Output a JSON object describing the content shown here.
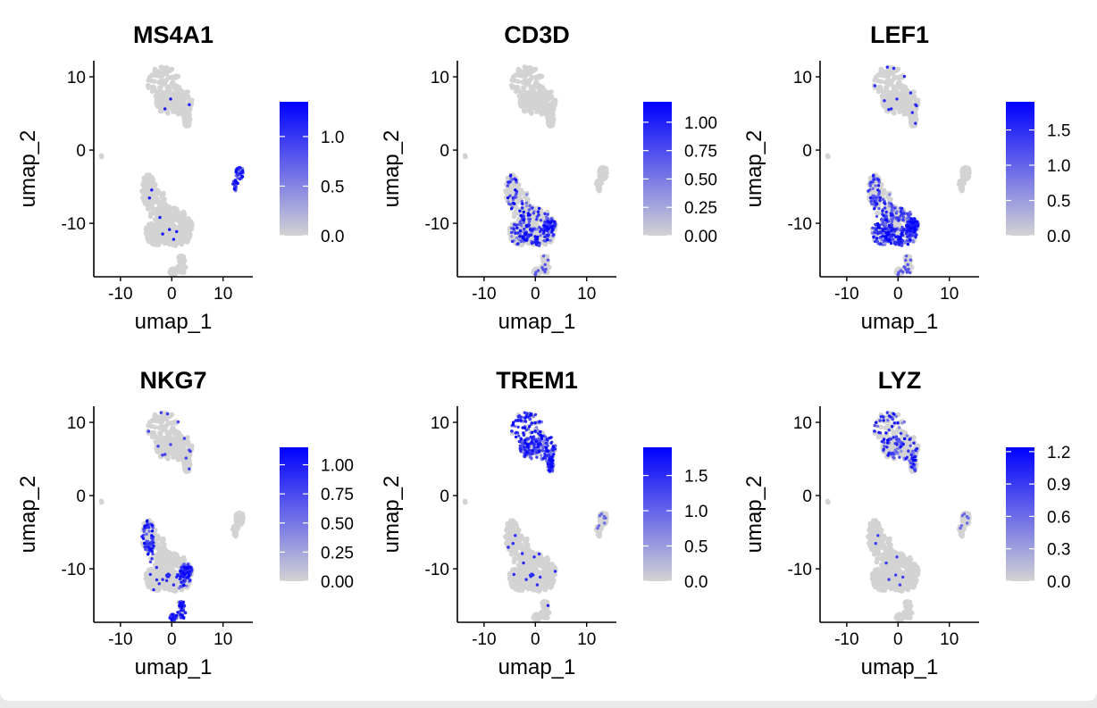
{
  "figure": {
    "background": "#ffffff",
    "low_color": "#d3d3d3",
    "high_color": "#0000ff"
  },
  "chart_data": [
    {
      "type": "scatter",
      "title": "MS4A1",
      "xlabel": "umap_1",
      "ylabel": "umap_2",
      "xticks": [
        -10,
        0,
        10
      ],
      "yticks": [
        10,
        0,
        -10
      ],
      "xlim": [
        -15.2,
        15.8
      ],
      "ylim": [
        -17.3,
        12.2
      ],
      "legend": {
        "position": "right",
        "min": 0,
        "max": 1.35,
        "ticks": [
          1.0,
          0.5,
          0.0
        ],
        "tick_labels": [
          "1.0",
          "0.5",
          "0.0"
        ]
      },
      "highlight": [
        "cluster_bcell"
      ]
    },
    {
      "type": "scatter",
      "title": "CD3D",
      "xlabel": "umap_1",
      "ylabel": "umap_2",
      "xticks": [
        -10,
        0,
        10
      ],
      "yticks": [
        10,
        0,
        -10
      ],
      "xlim": [
        -15.2,
        15.8
      ],
      "ylim": [
        -17.3,
        12.2
      ],
      "legend": {
        "position": "right",
        "min": 0,
        "max": 1.18,
        "ticks": [
          1.0,
          0.75,
          0.5,
          0.25,
          0.0
        ],
        "tick_labels": [
          "1.00",
          "0.75",
          "0.50",
          "0.25",
          "0.00"
        ]
      },
      "highlight": [
        "cluster_tcell_lower"
      ]
    },
    {
      "type": "scatter",
      "title": "LEF1",
      "xlabel": "umap_1",
      "ylabel": "umap_2",
      "xticks": [
        -10,
        0,
        10
      ],
      "yticks": [
        10,
        0,
        -10
      ],
      "xlim": [
        -15.2,
        15.8
      ],
      "ylim": [
        -17.3,
        12.2
      ],
      "legend": {
        "position": "right",
        "min": 0,
        "max": 1.9,
        "ticks": [
          1.5,
          1.0,
          0.5,
          0.0
        ],
        "tick_labels": [
          "1.5",
          "1.0",
          "0.5",
          "0.0"
        ]
      },
      "highlight": [
        "cluster_tcell_lower_dense"
      ]
    },
    {
      "type": "scatter",
      "title": "NKG7",
      "xlabel": "umap_1",
      "ylabel": "umap_2",
      "xticks": [
        -10,
        0,
        10
      ],
      "yticks": [
        10,
        0,
        -10
      ],
      "xlim": [
        -15.2,
        15.8
      ],
      "ylim": [
        -17.3,
        12.2
      ],
      "legend": {
        "position": "right",
        "min": 0,
        "max": 1.15,
        "ticks": [
          1.0,
          0.75,
          0.5,
          0.25,
          0.0
        ],
        "tick_labels": [
          "1.00",
          "0.75",
          "0.50",
          "0.25",
          "0.00"
        ]
      },
      "highlight": [
        "cluster_nk_edges"
      ]
    },
    {
      "type": "scatter",
      "title": "TREM1",
      "xlabel": "umap_1",
      "ylabel": "umap_2",
      "xticks": [
        -10,
        0,
        10
      ],
      "yticks": [
        10,
        0,
        -10
      ],
      "xlim": [
        -15.2,
        15.8
      ],
      "ylim": [
        -17.3,
        12.2
      ],
      "legend": {
        "position": "right",
        "min": 0,
        "max": 1.9,
        "ticks": [
          1.5,
          1.0,
          0.5,
          0.0
        ],
        "tick_labels": [
          "1.5",
          "1.0",
          "0.5",
          "0.0"
        ]
      },
      "highlight": [
        "cluster_myeloid_top"
      ]
    },
    {
      "type": "scatter",
      "title": "LYZ",
      "xlabel": "umap_1",
      "ylabel": "umap_2",
      "xticks": [
        -10,
        0,
        10
      ],
      "yticks": [
        10,
        0,
        -10
      ],
      "xlim": [
        -15.2,
        15.8
      ],
      "ylim": [
        -17.3,
        12.2
      ],
      "legend": {
        "position": "right",
        "min": 0,
        "max": 1.24,
        "ticks": [
          1.2,
          0.9,
          0.6,
          0.3,
          0.0
        ],
        "tick_labels": [
          "1.2",
          "0.9",
          "0.6",
          "0.3",
          "0.0"
        ]
      },
      "highlight": [
        "cluster_myeloid_top_sparse"
      ]
    }
  ]
}
